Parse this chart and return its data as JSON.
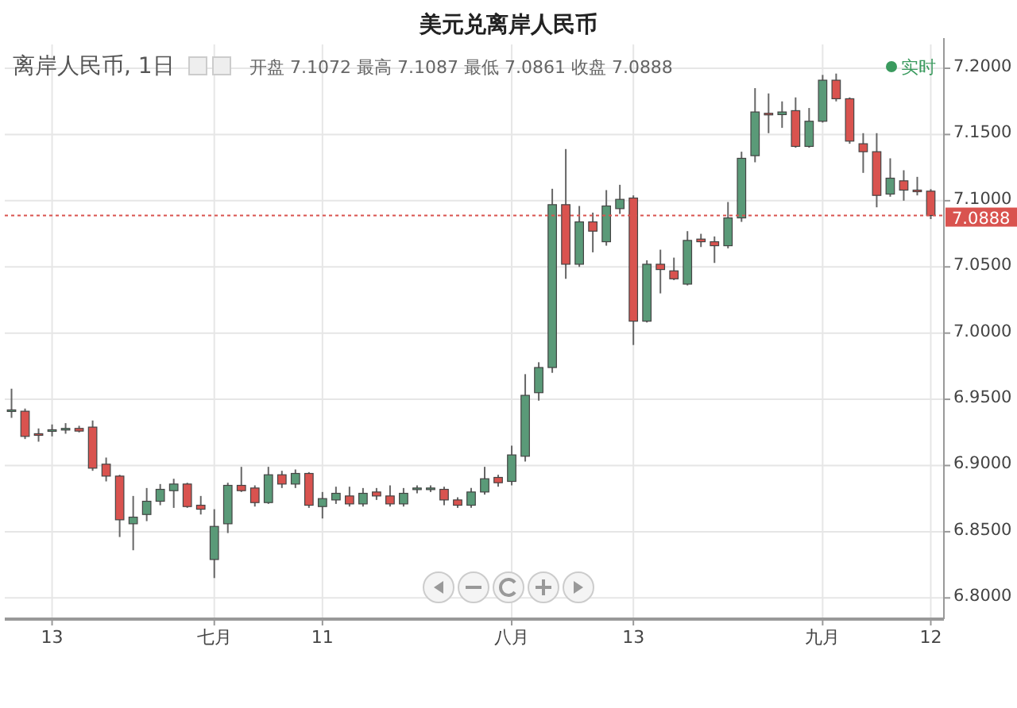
{
  "chart_data": {
    "type": "candlestick",
    "title": "美元兑离岸人民币",
    "annotations": [
      "离岸人民币, 1日",
      "开盘 7.1072 最高 7.1087 最低 7.0861 收盘 7.0888",
      "实时"
    ],
    "categories": [
      null,
      null,
      null,
      "13",
      null,
      null,
      null,
      null,
      null,
      null,
      null,
      null,
      null,
      null,
      null,
      "七月",
      null,
      null,
      null,
      null,
      null,
      null,
      null,
      "11",
      null,
      null,
      null,
      null,
      null,
      null,
      null,
      null,
      null,
      null,
      null,
      null,
      null,
      "八月",
      null,
      null,
      null,
      null,
      null,
      null,
      null,
      null,
      "13",
      null,
      null,
      null,
      null,
      null,
      null,
      null,
      null,
      null,
      null,
      null,
      null,
      null,
      "九月",
      null,
      null,
      null,
      null,
      null,
      null,
      null,
      "12"
    ],
    "ohlc": [
      [
        6.941,
        6.958,
        6.936,
        6.942
      ],
      [
        6.941,
        6.943,
        6.92,
        6.922
      ],
      [
        6.924,
        6.928,
        6.918,
        6.923
      ],
      [
        6.926,
        6.931,
        6.922,
        6.927
      ],
      [
        6.927,
        6.932,
        6.924,
        6.928
      ],
      [
        6.928,
        6.93,
        6.925,
        6.926
      ],
      [
        6.929,
        6.934,
        6.896,
        6.898
      ],
      [
        6.901,
        6.906,
        6.888,
        6.892
      ],
      [
        6.892,
        6.893,
        6.846,
        6.859
      ],
      [
        6.856,
        6.877,
        6.836,
        6.861
      ],
      [
        6.863,
        6.883,
        6.858,
        6.873
      ],
      [
        6.873,
        6.886,
        6.87,
        6.882
      ],
      [
        6.881,
        6.89,
        6.868,
        6.886
      ],
      [
        6.886,
        6.887,
        6.868,
        6.869
      ],
      [
        6.87,
        6.877,
        6.863,
        6.867
      ],
      [
        6.829,
        6.867,
        6.815,
        6.854
      ],
      [
        6.856,
        6.887,
        6.849,
        6.885
      ],
      [
        6.885,
        6.899,
        6.88,
        6.881
      ],
      [
        6.883,
        6.885,
        6.869,
        6.872
      ],
      [
        6.872,
        6.899,
        6.871,
        6.893
      ],
      [
        6.893,
        6.896,
        6.883,
        6.886
      ],
      [
        6.886,
        6.897,
        6.883,
        6.894
      ],
      [
        6.894,
        6.895,
        6.868,
        6.87
      ],
      [
        6.869,
        6.88,
        6.86,
        6.875
      ],
      [
        6.874,
        6.884,
        6.871,
        6.879
      ],
      [
        6.877,
        6.884,
        6.869,
        6.871
      ],
      [
        6.871,
        6.883,
        6.869,
        6.879
      ],
      [
        6.88,
        6.883,
        6.874,
        6.877
      ],
      [
        6.877,
        6.885,
        6.869,
        6.871
      ],
      [
        6.871,
        6.883,
        6.869,
        6.879
      ],
      [
        6.882,
        6.885,
        6.879,
        6.883
      ],
      [
        6.882,
        6.885,
        6.88,
        6.883
      ],
      [
        6.882,
        6.884,
        6.87,
        6.874
      ],
      [
        6.874,
        6.876,
        6.868,
        6.87
      ],
      [
        6.87,
        6.883,
        6.868,
        6.88
      ],
      [
        6.88,
        6.899,
        6.878,
        6.89
      ],
      [
        6.891,
        6.893,
        6.884,
        6.887
      ],
      [
        6.888,
        6.915,
        6.885,
        6.908
      ],
      [
        6.907,
        6.969,
        6.903,
        6.953
      ],
      [
        6.955,
        6.978,
        6.949,
        6.974
      ],
      [
        6.974,
        7.109,
        6.97,
        7.097
      ],
      [
        7.097,
        7.139,
        7.041,
        7.052
      ],
      [
        7.052,
        7.096,
        7.05,
        7.084
      ],
      [
        7.084,
        7.091,
        7.061,
        7.077
      ],
      [
        7.069,
        7.108,
        7.066,
        7.096
      ],
      [
        7.094,
        7.112,
        7.09,
        7.101
      ],
      [
        7.102,
        7.104,
        6.991,
        7.009
      ],
      [
        7.009,
        7.055,
        7.008,
        7.052
      ],
      [
        7.052,
        7.063,
        7.03,
        7.048
      ],
      [
        7.047,
        7.057,
        7.04,
        7.041
      ],
      [
        7.037,
        7.077,
        7.036,
        7.07
      ],
      [
        7.071,
        7.075,
        7.065,
        7.069
      ],
      [
        7.069,
        7.073,
        7.053,
        7.066
      ],
      [
        7.066,
        7.099,
        7.064,
        7.087
      ],
      [
        7.087,
        7.137,
        7.084,
        7.132
      ],
      [
        7.134,
        7.185,
        7.129,
        7.167
      ],
      [
        7.166,
        7.181,
        7.151,
        7.165
      ],
      [
        7.165,
        7.175,
        7.155,
        7.167
      ],
      [
        7.168,
        7.178,
        7.14,
        7.141
      ],
      [
        7.141,
        7.17,
        7.14,
        7.16
      ],
      [
        7.16,
        7.195,
        7.159,
        7.191
      ],
      [
        7.191,
        7.196,
        7.175,
        7.177
      ],
      [
        7.177,
        7.178,
        7.143,
        7.145
      ],
      [
        7.143,
        7.151,
        7.121,
        7.137
      ],
      [
        7.137,
        7.151,
        7.095,
        7.104
      ],
      [
        7.105,
        7.132,
        7.103,
        7.117
      ],
      [
        7.115,
        7.123,
        7.1,
        7.108
      ],
      [
        7.108,
        7.118,
        7.104,
        7.107
      ],
      [
        7.1072,
        7.1087,
        7.0861,
        7.0888
      ]
    ],
    "colors": [
      "#5a9a78",
      "#d9534f",
      "#d9534f",
      "#5a9a78",
      "#5a9a78",
      "#d9534f",
      "#d9534f",
      "#d9534f",
      "#d9534f",
      "#5a9a78",
      "#5a9a78",
      "#5a9a78",
      "#5a9a78",
      "#d9534f",
      "#d9534f",
      "#5a9a78",
      "#5a9a78",
      "#d9534f",
      "#d9534f",
      "#5a9a78",
      "#d9534f",
      "#5a9a78",
      "#d9534f",
      "#5a9a78",
      "#5a9a78",
      "#d9534f",
      "#5a9a78",
      "#d9534f",
      "#d9534f",
      "#5a9a78",
      "#5a9a78",
      "#5a9a78",
      "#d9534f",
      "#d9534f",
      "#5a9a78",
      "#5a9a78",
      "#d9534f",
      "#5a9a78",
      "#5a9a78",
      "#5a9a78",
      "#5a9a78",
      "#d9534f",
      "#5a9a78",
      "#d9534f",
      "#5a9a78",
      "#5a9a78",
      "#d9534f",
      "#5a9a78",
      "#d9534f",
      "#d9534f",
      "#5a9a78",
      "#d9534f",
      "#d9534f",
      "#5a9a78",
      "#5a9a78",
      "#5a9a78",
      "#d9534f",
      "#5a9a78",
      "#d9534f",
      "#5a9a78",
      "#5a9a78",
      "#d9534f",
      "#d9534f",
      "#d9534f",
      "#d9534f",
      "#5a9a78",
      "#d9534f",
      "#d9534f",
      "#d9534f"
    ],
    "ylim": [
      6.784,
      7.218
    ],
    "yticks": [
      {
        "value": 6.8,
        "label": "6.8000"
      },
      {
        "value": 6.85,
        "label": "6.8500"
      },
      {
        "value": 6.9,
        "label": "6.9000"
      },
      {
        "value": 6.95,
        "label": "6.9500"
      },
      {
        "value": 7.0,
        "label": "7.0000"
      },
      {
        "value": 7.05,
        "label": "7.0500"
      },
      {
        "value": 7.1,
        "label": "7.1000"
      },
      {
        "value": 7.15,
        "label": "7.1500"
      },
      {
        "value": 7.2,
        "label": "7.2000"
      }
    ],
    "ref_lines": [
      {
        "axis": "y",
        "value": 7.0888,
        "label": "7.0888",
        "color": "#d9534f",
        "line_style": "dotted"
      }
    ],
    "grid": true
  }
}
